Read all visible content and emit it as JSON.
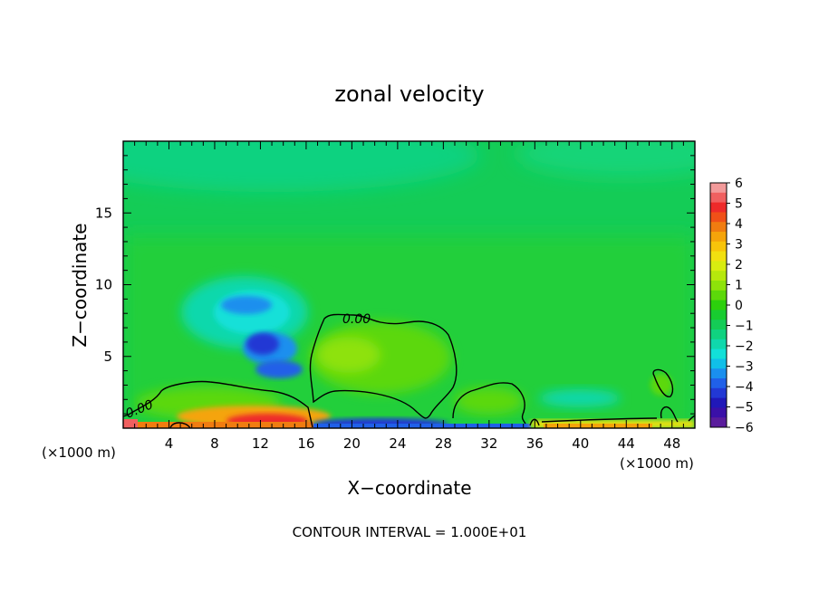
{
  "chart_data": {
    "type": "heatmap",
    "title": "zonal velocity",
    "xlabel": "X−coordinate",
    "ylabel": "Z−coordinate",
    "x_unit_left": "(×1000 m)",
    "x_unit_right": "(×1000 m)",
    "xlim": [
      0,
      50
    ],
    "ylim": [
      0,
      20
    ],
    "x_ticks": [
      4,
      8,
      12,
      16,
      20,
      24,
      28,
      32,
      36,
      40,
      44,
      48
    ],
    "y_ticks": [
      5,
      10,
      15
    ],
    "contour_label": "0.00",
    "footer": "CONTOUR INTERVAL = 1.000E+01",
    "colorbar": {
      "labels": [
        "6",
        "5",
        "4",
        "3",
        "2",
        "1",
        "0",
        "−1",
        "−2",
        "−3",
        "−4",
        "−5",
        "−6"
      ],
      "levels": [
        6,
        5.5,
        5,
        4.5,
        4,
        3.5,
        3,
        2.5,
        2,
        1.5,
        1,
        0.5,
        0,
        -0.5,
        -1,
        -1.5,
        -2,
        -2.5,
        -3,
        -3.5,
        -4,
        -4.5,
        -5,
        -5.5,
        -6
      ],
      "colors": [
        "#f29a9a",
        "#f06060",
        "#ee2a2a",
        "#f05018",
        "#f07c10",
        "#f5a40a",
        "#f8c40a",
        "#f2e010",
        "#d8ec10",
        "#b6e80c",
        "#8ee20a",
        "#5cd80a",
        "#2cd00c",
        "#18cc30",
        "#14cc56",
        "#10d280",
        "#10d8ac",
        "#12e0d8",
        "#10bfe8",
        "#1a8fee",
        "#2060e8",
        "#2238d4",
        "#2018b8",
        "#3a10a8",
        "#5a1c9c"
      ]
    }
  }
}
